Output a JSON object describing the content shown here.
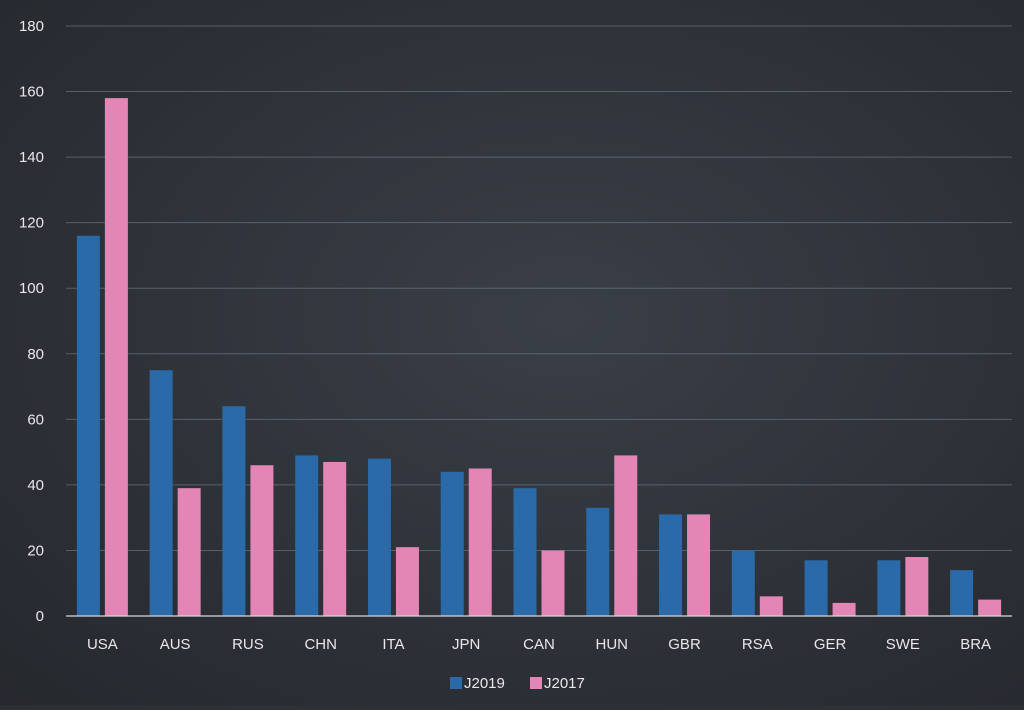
{
  "colors": {
    "background": "#30343b",
    "grid": "#7d8591",
    "axis_text": "#e8e8e8",
    "series_j2019": "#2a6aa8",
    "series_j2017": "#e385b5"
  },
  "chart_data": {
    "type": "bar",
    "title": "",
    "xlabel": "",
    "ylabel": "",
    "ylim": [
      0,
      180
    ],
    "yticks": [
      0,
      20,
      40,
      60,
      80,
      100,
      120,
      140,
      160,
      180
    ],
    "grid": true,
    "legend_position": "bottom",
    "categories": [
      "USA",
      "AUS",
      "RUS",
      "CHN",
      "ITA",
      "JPN",
      "CAN",
      "HUN",
      "GBR",
      "RSA",
      "GER",
      "SWE",
      "BRA"
    ],
    "series": [
      {
        "name": "J2019",
        "color": "#2a6aa8",
        "values": [
          116,
          75,
          64,
          49,
          48,
          44,
          39,
          33,
          31,
          20,
          17,
          17,
          14
        ]
      },
      {
        "name": "J2017",
        "color": "#e385b5",
        "values": [
          158,
          39,
          46,
          47,
          21,
          45,
          20,
          49,
          31,
          6,
          4,
          18,
          5
        ]
      }
    ]
  }
}
